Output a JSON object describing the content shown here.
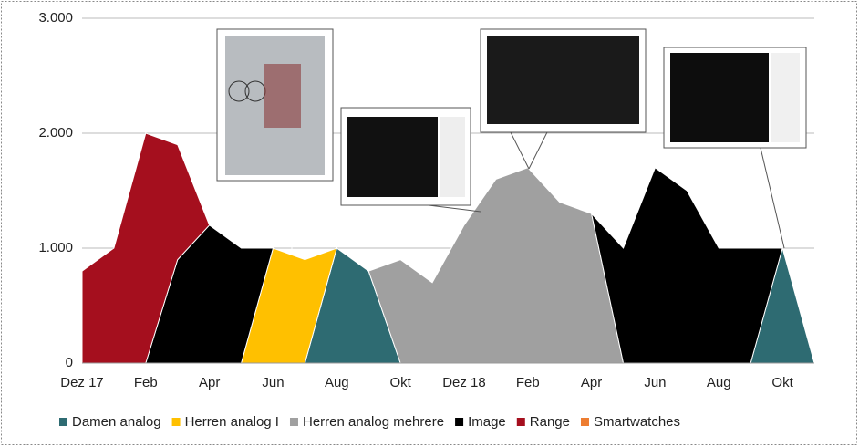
{
  "chart_data": {
    "type": "stacked_area",
    "categories": [
      "Dez 17",
      null,
      "Feb",
      null,
      "Apr",
      null,
      "Jun",
      null,
      "Aug",
      null,
      "Okt",
      null,
      "Dez 18",
      null,
      "Feb",
      null,
      "Apr",
      null,
      "Jun",
      null,
      "Aug",
      null,
      "Okt",
      null
    ],
    "series": [
      {
        "name": "Damen analog",
        "color": "#2e6b72",
        "values": [
          null,
          null,
          null,
          null,
          null,
          null,
          null,
          0,
          1000,
          800,
          0,
          null,
          null,
          null,
          null,
          null,
          null,
          null,
          null,
          null,
          null,
          0,
          1000,
          0
        ]
      },
      {
        "name": "Herren analog I",
        "color": "#ffc000",
        "values": [
          null,
          null,
          null,
          null,
          null,
          0,
          1000,
          900,
          0,
          null,
          null,
          null,
          null,
          null,
          null,
          null,
          null,
          null,
          null,
          null,
          null,
          null,
          null,
          null
        ]
      },
      {
        "name": "Herren analog mehrere",
        "color": "#a0a0a0",
        "values": [
          null,
          null,
          null,
          null,
          null,
          null,
          null,
          null,
          null,
          0,
          900,
          700,
          1200,
          1600,
          1700,
          1400,
          1300,
          0,
          null,
          null,
          null,
          null,
          null,
          null
        ]
      },
      {
        "name": "Image",
        "color": "#000000",
        "values": [
          null,
          null,
          0,
          900,
          1200,
          1000,
          0,
          null,
          null,
          null,
          null,
          null,
          null,
          null,
          null,
          null,
          0,
          1000,
          1700,
          1500,
          1000,
          1000,
          0,
          null
        ]
      },
      {
        "name": "Range",
        "color": "#a50f1e",
        "values": [
          800,
          1000,
          2000,
          1000,
          0,
          null,
          null,
          null,
          null,
          null,
          null,
          null,
          null,
          null,
          null,
          null,
          null,
          null,
          null,
          null,
          null,
          null,
          null,
          null
        ]
      },
      {
        "name": "Smartwatches",
        "color": "#ed7d31",
        "values": [
          null,
          null,
          null,
          null,
          null,
          null,
          null,
          null,
          null,
          null,
          null,
          null,
          null,
          null,
          null,
          null,
          null,
          null,
          null,
          null,
          null,
          null,
          null,
          null
        ]
      }
    ],
    "ylim": [
      0,
      3000
    ],
    "yticks": [
      {
        "value": 0,
        "label": "0"
      },
      {
        "value": 1000,
        "label": "1.000"
      },
      {
        "value": 2000,
        "label": "2.000"
      },
      {
        "value": 3000,
        "label": "3.000"
      }
    ],
    "grid": true
  }
}
